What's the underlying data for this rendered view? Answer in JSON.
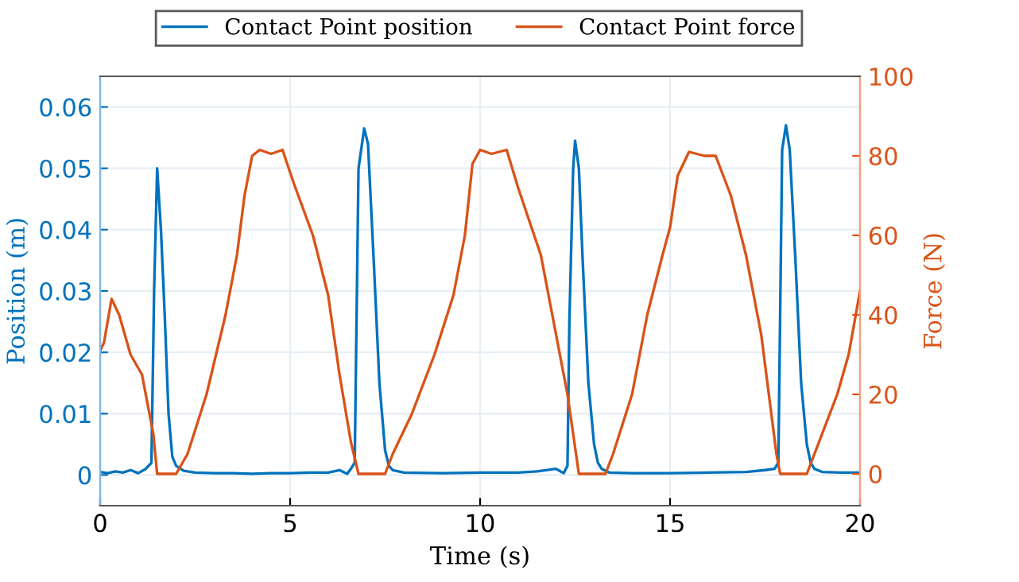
{
  "chart_data": {
    "type": "line",
    "xlabel": "Time (s)",
    "ylabel": "Position (m)",
    "y2label": "Force (N)",
    "xlim": [
      0,
      20
    ],
    "xticks": [
      0,
      5,
      10,
      15,
      20
    ],
    "ylim": [
      -0.005,
      0.065
    ],
    "yticks": [
      0,
      0.01,
      0.02,
      0.03,
      0.04,
      0.05,
      0.06
    ],
    "y2lim": [
      -8,
      100
    ],
    "y2ticks": [
      0,
      20,
      40,
      60,
      80,
      100
    ],
    "grid": true,
    "legend": "top",
    "marker": "none",
    "line_style": "solid",
    "series": [
      {
        "name": "Contact Point position",
        "color": "#0072bd",
        "x": [
          0,
          0.2,
          0.4,
          0.6,
          0.8,
          1.0,
          1.2,
          1.35,
          1.42,
          1.5,
          1.6,
          1.7,
          1.8,
          1.9,
          2.0,
          2.2,
          2.5,
          3,
          3.5,
          4,
          4.5,
          5,
          5.5,
          6,
          6.3,
          6.5,
          6.6,
          6.7,
          6.8,
          6.95,
          7.05,
          7.2,
          7.35,
          7.5,
          7.6,
          7.7,
          8,
          9,
          10,
          11,
          11.5,
          12,
          12.2,
          12.3,
          12.35,
          12.45,
          12.5,
          12.6,
          12.7,
          12.85,
          13.0,
          13.1,
          13.2,
          13.4,
          14,
          15,
          16,
          17,
          17.5,
          17.75,
          17.85,
          17.95,
          18.05,
          18.15,
          18.3,
          18.45,
          18.6,
          18.7,
          18.8,
          19,
          19.5,
          20
        ],
        "values": [
          0.0005,
          0.0003,
          0.0006,
          0.0004,
          0.0008,
          0.0003,
          0.001,
          0.002,
          0.03,
          0.05,
          0.04,
          0.026,
          0.01,
          0.003,
          0.0015,
          0.0007,
          0.0004,
          0.0003,
          0.0003,
          0.0002,
          0.0003,
          0.0003,
          0.0004,
          0.0004,
          0.0008,
          0.0002,
          0.001,
          0.002,
          0.05,
          0.0565,
          0.054,
          0.035,
          0.015,
          0.004,
          0.0015,
          0.0008,
          0.0004,
          0.0003,
          0.0004,
          0.0004,
          0.0006,
          0.001,
          0.0003,
          0.0015,
          0.025,
          0.05,
          0.0545,
          0.05,
          0.035,
          0.015,
          0.005,
          0.002,
          0.001,
          0.0004,
          0.0003,
          0.0003,
          0.0004,
          0.0005,
          0.0008,
          0.001,
          0.002,
          0.053,
          0.057,
          0.053,
          0.035,
          0.015,
          0.005,
          0.002,
          0.001,
          0.0005,
          0.0004,
          0.0004
        ]
      },
      {
        "name": "Contact Point force",
        "color": "#d95319",
        "axis": "y2",
        "x": [
          0,
          0.1,
          0.3,
          0.5,
          0.8,
          1.1,
          1.4,
          1.5,
          2.0,
          2.3,
          2.8,
          3.3,
          3.6,
          3.8,
          4.0,
          4.2,
          4.5,
          4.8,
          5.1,
          5.6,
          6.0,
          6.3,
          6.6,
          6.8,
          7.5,
          7.7,
          8.2,
          8.8,
          9.3,
          9.6,
          9.8,
          10.0,
          10.3,
          10.7,
          11.0,
          11.6,
          11.9,
          12.3,
          12.6,
          13.3,
          13.5,
          14.0,
          14.4,
          14.8,
          15.0,
          15.2,
          15.5,
          15.9,
          16.2,
          16.6,
          17.0,
          17.4,
          17.8,
          17.9,
          18.6,
          18.8,
          19.4,
          19.7,
          20
        ],
        "values": [
          31,
          33,
          44,
          40,
          30,
          25,
          10,
          0,
          0,
          5,
          20,
          40,
          55,
          70,
          80,
          81.5,
          80.5,
          81.5,
          73,
          60,
          45,
          25,
          8,
          0,
          0,
          5,
          15,
          30,
          45,
          60,
          78,
          81.5,
          80.5,
          81.5,
          72,
          55,
          40,
          20,
          0,
          0,
          5,
          20,
          40,
          55,
          62,
          75,
          81,
          80,
          80,
          70,
          55,
          35,
          5,
          0,
          0,
          5,
          20,
          30,
          46
        ]
      }
    ]
  }
}
